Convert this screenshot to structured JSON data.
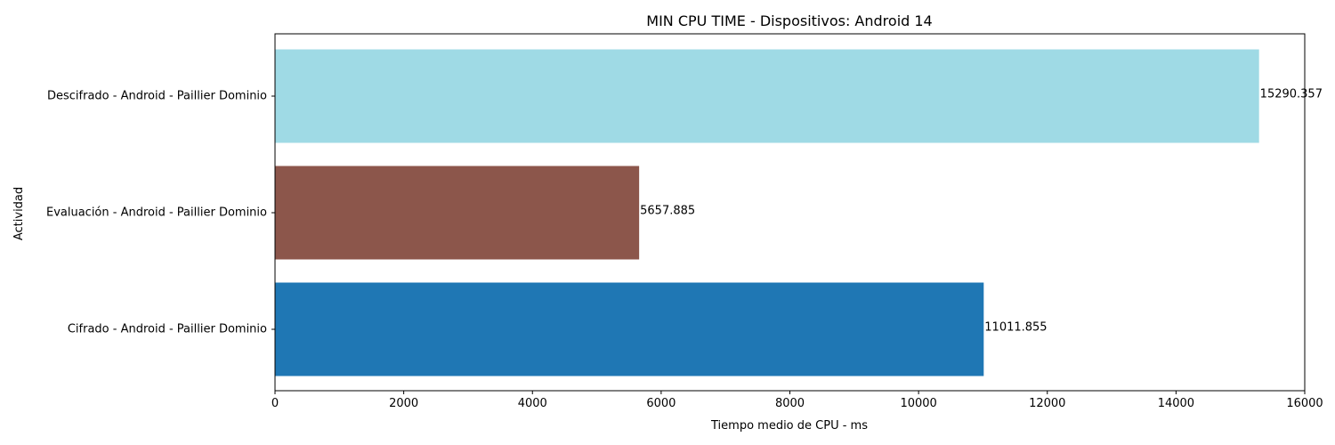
{
  "chart_data": {
    "type": "bar",
    "orientation": "horizontal",
    "title": "MIN CPU TIME - Dispositivos: Android 14",
    "xlabel": "Tiempo medio de CPU - ms",
    "ylabel": "Actividad",
    "xlim": [
      0,
      16000
    ],
    "xticks": [
      0,
      2000,
      4000,
      6000,
      8000,
      10000,
      12000,
      14000,
      16000
    ],
    "categories": [
      "Cifrado - Android - Paillier Dominio",
      "Evaluación - Android - Paillier Dominio",
      "Descifrado - Android - Paillier Dominio"
    ],
    "values": [
      11011.855,
      5657.885,
      15290.357
    ],
    "value_labels": [
      "11011.855",
      "5657.885",
      "15290.357"
    ],
    "colors": [
      "#1f77b4",
      "#8c564b",
      "#9fdae5"
    ],
    "grid": false,
    "legend": "none"
  }
}
